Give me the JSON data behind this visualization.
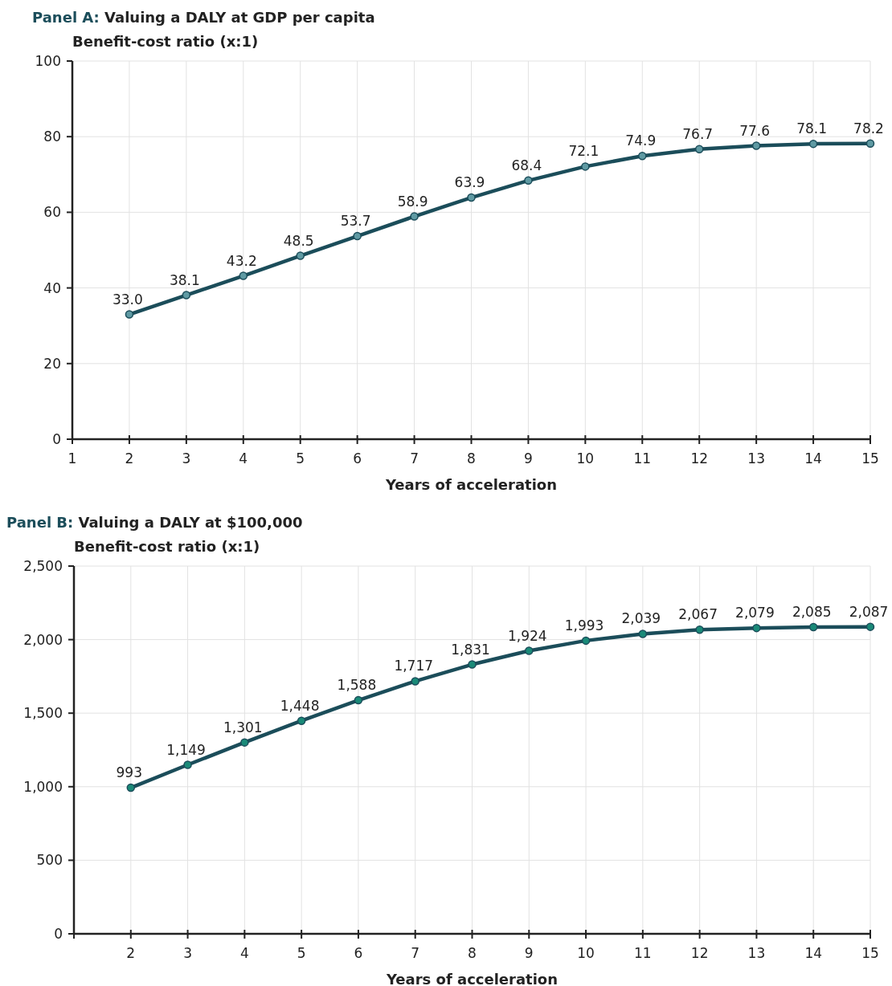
{
  "chart_data": [
    {
      "type": "line",
      "title": "Panel A: Valuing a DALY at GDP per capita",
      "ylabel": "Benefit-cost ratio (x:1)",
      "xlabel": "Years of acceleration",
      "x": [
        2,
        3,
        4,
        5,
        6,
        7,
        8,
        9,
        10,
        11,
        12,
        13,
        14,
        15
      ],
      "series": [
        {
          "color": "#1b4d5a",
          "colors": [
            "#5f9aa3",
            "#5f9aa3",
            "#5f9aa3",
            "#5f9aa3",
            "#5f9aa3",
            "#5f9aa3",
            "#5f9aa3",
            "#5f9aa3",
            "#5f9aa3",
            "#5f9aa3",
            "#5f9aa3",
            "#5f9aa3",
            "#5f9aa3",
            "#5f9aa3"
          ],
          "values": [
            33.0,
            38.1,
            43.2,
            48.5,
            53.7,
            58.9,
            63.9,
            68.4,
            72.1,
            74.9,
            76.7,
            77.6,
            78.1,
            78.2
          ]
        }
      ],
      "value_labels": [
        "33.0",
        "38.1",
        "43.2",
        "48.5",
        "53.7",
        "58.9",
        "63.9",
        "68.4",
        "72.1",
        "74.9",
        "76.7",
        "77.6",
        "78.1",
        "78.2"
      ],
      "xlim": [
        1,
        15
      ],
      "xticks": [
        1,
        2,
        3,
        4,
        5,
        6,
        7,
        8,
        9,
        10,
        11,
        12,
        13,
        14,
        15
      ],
      "ylim": [
        0,
        100
      ],
      "yticks": [
        0,
        20,
        40,
        60,
        80,
        100
      ],
      "grid": true,
      "marker": "circle",
      "line_style": "solid"
    },
    {
      "type": "line",
      "title": "Panel B: Valuing a DALY at $100,000",
      "ylabel": "Benefit-cost ratio (x:1)",
      "xlabel": "Years of acceleration",
      "x": [
        2,
        3,
        4,
        5,
        6,
        7,
        8,
        9,
        10,
        11,
        12,
        13,
        14,
        15
      ],
      "series": [
        {
          "color": "#1b4d5a",
          "colors": [
            "#1a8a78",
            "#1a8a78",
            "#1a8a78",
            "#1a8a78",
            "#1a8a78",
            "#1a8a78",
            "#1a8a78",
            "#1a8a78",
            "#1a8a78",
            "#1a8a78",
            "#1a8a78",
            "#1a8a78",
            "#1a8a78",
            "#1a8a78"
          ],
          "values": [
            993,
            1149,
            1301,
            1448,
            1588,
            1717,
            1831,
            1924,
            1993,
            2039,
            2067,
            2079,
            2085,
            2087
          ]
        }
      ],
      "value_labels": [
        "993",
        "1,149",
        "1,301",
        "1,448",
        "1,588",
        "1,717",
        "1,831",
        "1,924",
        "1,993",
        "2,039",
        "2,067",
        "2,079",
        "2,085",
        "2,087"
      ],
      "xlim": [
        1,
        15
      ],
      "xticks": [
        {
          "value": 1,
          "label": null
        },
        2,
        3,
        4,
        5,
        6,
        7,
        8,
        9,
        10,
        11,
        12,
        13,
        14,
        15
      ],
      "ylim": [
        0,
        2500
      ],
      "yticks": [
        0,
        {
          "value": 500,
          "label": "500"
        },
        {
          "value": 1000,
          "label": "1,000"
        },
        {
          "value": 1500,
          "label": "1,500"
        },
        {
          "value": 2000,
          "label": "2,000"
        },
        {
          "value": 2500,
          "label": "2,500"
        }
      ],
      "grid": true,
      "marker": "circle",
      "line_style": "solid"
    }
  ]
}
